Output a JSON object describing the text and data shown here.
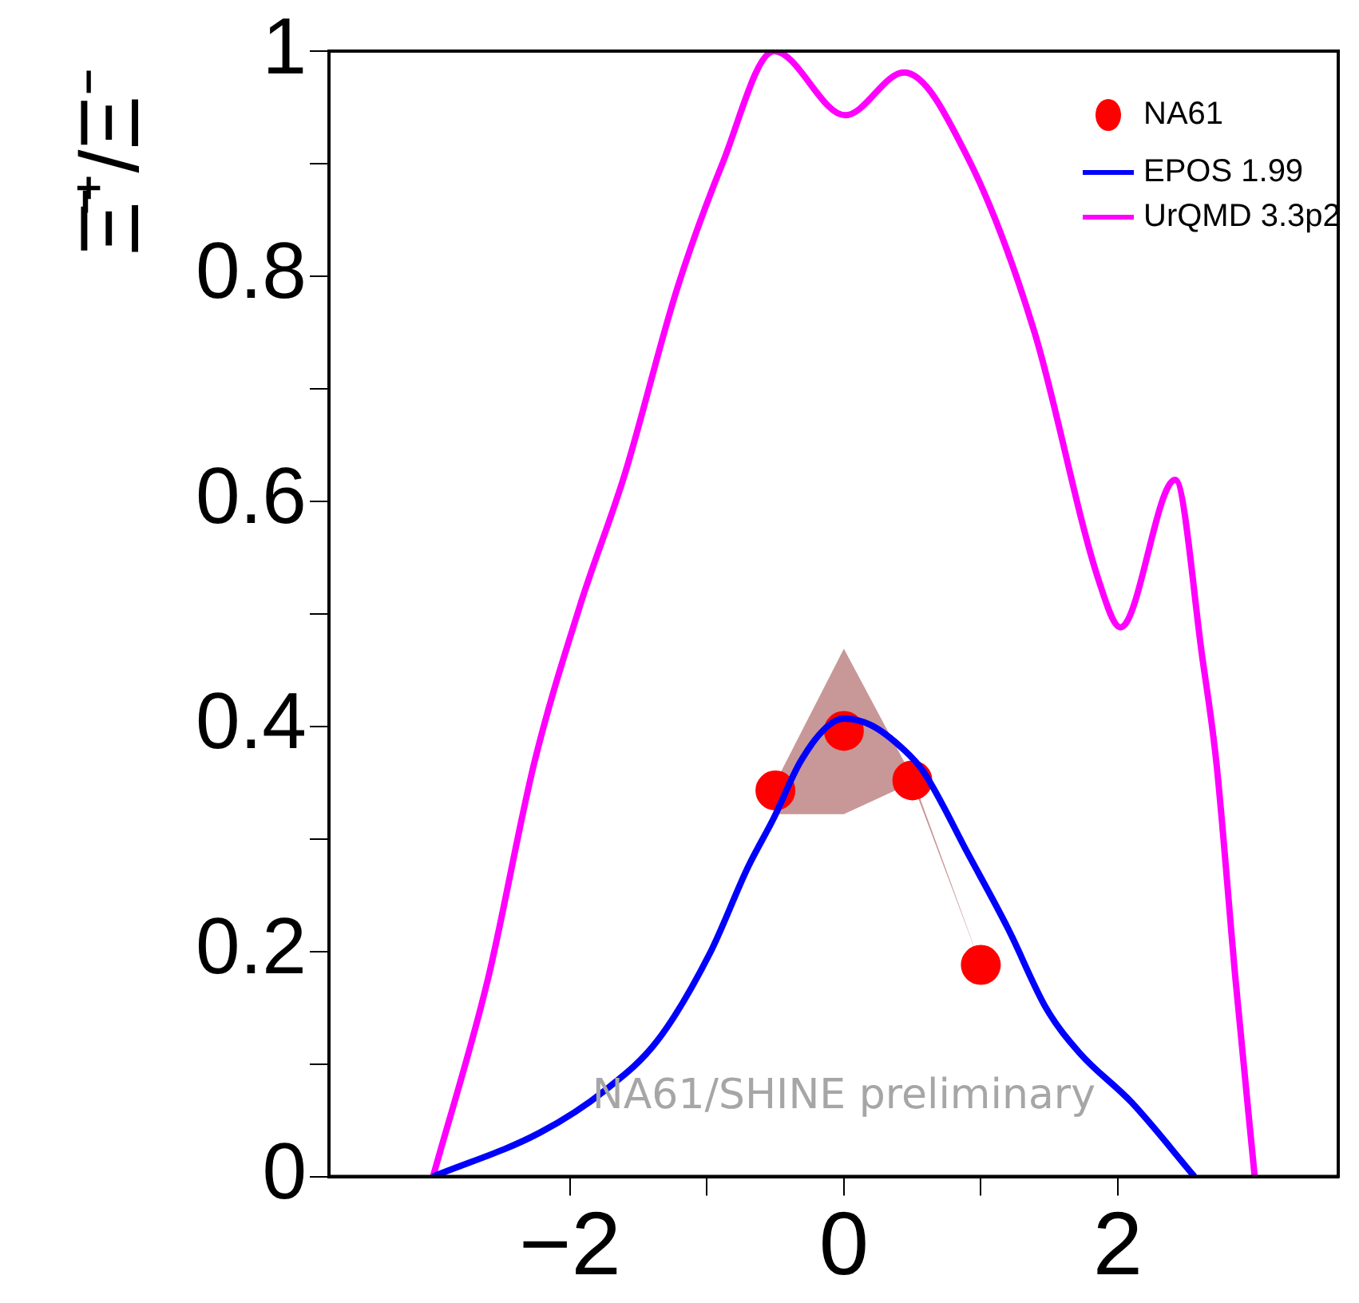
{
  "chart_data": {
    "type": "line",
    "ylabel": "Ξ̄⁺/Ξ⁻",
    "xlim": [
      -3.76,
      3.61
    ],
    "xticks": [
      -2,
      {
        "value": -1,
        "label": null
      },
      0,
      {
        "value": 1,
        "label": null
      },
      2
    ],
    "ylim": [
      0,
      1
    ],
    "yticks": [
      0,
      {
        "value": 0.1,
        "label": null
      },
      0.2,
      {
        "value": 0.3,
        "label": null
      },
      0.4,
      {
        "value": 0.5,
        "label": null
      },
      0.6,
      {
        "value": 0.7,
        "label": null
      },
      0.8,
      {
        "value": 0.9,
        "label": null
      },
      1
    ],
    "grid": false,
    "legend": "top right",
    "line_style": "solid",
    "annotations": [
      "NA61/SHINE preliminary"
    ],
    "series": [
      {
        "name": "NA61",
        "type": "scatter",
        "marker": "circle",
        "color": "#ff0000",
        "x": [
          -0.5,
          0,
          0.5,
          1
        ],
        "values": [
          0.343,
          0.396,
          0.352,
          0.188
        ],
        "lower": [
          0.322,
          0.322,
          0.35,
          0.188
        ],
        "upper": [
          0.35,
          0.469,
          0.355,
          0.188
        ]
      },
      {
        "name": "EPOS 1.99",
        "color": "#0000ff",
        "x": [
          -3,
          -2.22,
          -1.74,
          -1.36,
          -0.98,
          -0.7,
          -0.51,
          -0.32,
          -0.13,
          0,
          0.2,
          0.44,
          0.58,
          0.91,
          1.2,
          1.48,
          1.72,
          2.1,
          2.56
        ],
        "values": [
          0,
          0.039,
          0.077,
          0.121,
          0.198,
          0.275,
          0.319,
          0.368,
          0.399,
          0.407,
          0.401,
          0.379,
          0.36,
          0.286,
          0.22,
          0.149,
          0.11,
          0.066,
          0
        ]
      },
      {
        "name": "UrQMD 3.3p2",
        "color": "#ff00ff",
        "x": [
          -3,
          -2.6,
          -2.26,
          -1.93,
          -1.6,
          -1.22,
          -0.89,
          -0.51,
          0.01,
          0.44,
          0.91,
          1.39,
          1.86,
          2.02,
          2.42,
          2.62,
          2.72,
          2.86,
          3
        ],
        "values": [
          0,
          0.175,
          0.368,
          0.506,
          0.624,
          0.788,
          0.899,
          1.0,
          0.943,
          0.981,
          0.904,
          0.751,
          0.53,
          0.488,
          0.619,
          0.459,
          0.368,
          0.175,
          0
        ]
      }
    ]
  }
}
